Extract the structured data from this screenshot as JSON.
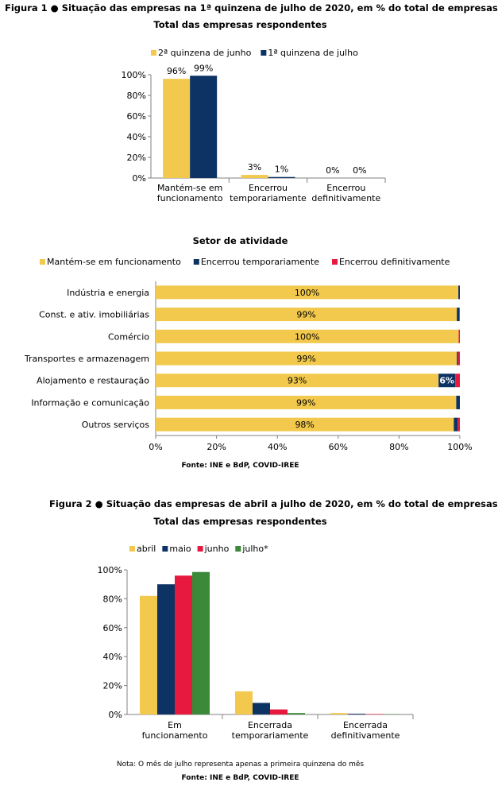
{
  "colors": {
    "yellow": "#F2C94C",
    "navy": "#0D3264",
    "red": "#E8193F",
    "green": "#3A8A3A",
    "axis": "#808080"
  },
  "figure1": {
    "title": "Figura 1 ● Situação das empresas na 1ª quinzena de julho de 2020, em % do total de empresas",
    "subtitle": "Total das empresas respondentes"
  },
  "sector": {
    "subtitle": "Setor de atividade"
  },
  "source": "Fonte: INE e BdP, COVID-IREE",
  "figure2": {
    "title": "Figura 2 ● Situação das empresas de abril a julho de 2020, em % do total de empresas",
    "subtitle": "Total das empresas respondentes",
    "note": "Nota: O mês de julho representa apenas a primeira quinzena do mês",
    "source": "Fonte: INE e BdP, COVID-IREE"
  },
  "chart_data": [
    {
      "type": "bar",
      "title": "Total das empresas respondentes",
      "categories": [
        "Mantém-se em funcionamento",
        "Encerrou temporariamente",
        "Encerrou definitivamente"
      ],
      "series": [
        {
          "name": "2ª quinzena de junho",
          "color": "#F2C94C",
          "values": [
            96,
            3,
            0
          ],
          "labels": [
            "96%",
            "3%",
            "0%"
          ]
        },
        {
          "name": "1ª quinzena de julho",
          "color": "#0D3264",
          "values": [
            99,
            1,
            0
          ],
          "labels": [
            "99%",
            "1%",
            "0%"
          ]
        }
      ],
      "ylim": [
        0,
        100
      ],
      "yticks": [
        "0%",
        "20%",
        "40%",
        "60%",
        "80%",
        "100%"
      ],
      "legend": "top"
    },
    {
      "type": "bar",
      "orientation": "horizontal",
      "stacked": true,
      "title": "Setor de atividade",
      "categories": [
        "Indústria e energia",
        "Const. e ativ. imobiliárias",
        "Comércio",
        "Transportes e armazenagem",
        "Alojamento e restauração",
        "Informação e comunicação",
        "Outros serviços"
      ],
      "series": [
        {
          "name": "Mantém-se em funcionamento",
          "color": "#F2C94C",
          "values": [
            99.5,
            99,
            99.6,
            99,
            93,
            98.8,
            98
          ],
          "labels": [
            "100%",
            "99%",
            "100%",
            "99%",
            "93%",
            "99%",
            "98%"
          ]
        },
        {
          "name": "Encerrou temporariamente",
          "color": "#0D3264",
          "values": [
            0.5,
            0.8,
            0,
            0.4,
            5.5,
            1.2,
            1.3
          ],
          "labels": [
            "",
            "",
            "",
            "",
            "6%",
            "",
            ""
          ]
        },
        {
          "name": "Encerrou definitivamente",
          "color": "#E8193F",
          "values": [
            0,
            0.2,
            0.4,
            0.6,
            1.5,
            0,
            0.7
          ],
          "labels": [
            "",
            "",
            "",
            "",
            "",
            "",
            ""
          ]
        }
      ],
      "xlim": [
        0,
        100
      ],
      "xticks": [
        "0%",
        "20%",
        "40%",
        "60%",
        "80%",
        "100%"
      ],
      "legend": "top"
    },
    {
      "type": "bar",
      "title": "Total das empresas respondentes",
      "categories": [
        "Em funcionamento",
        "Encerrada temporariamente",
        "Encerrada definitivamente"
      ],
      "series": [
        {
          "name": "abril",
          "color": "#F2C94C",
          "values": [
            82,
            16,
            1
          ]
        },
        {
          "name": "maio",
          "color": "#0D3264",
          "values": [
            90,
            8,
            0.5
          ]
        },
        {
          "name": "junho",
          "color": "#E8193F",
          "values": [
            96,
            3.5,
            0.3
          ]
        },
        {
          "name": "julho*",
          "color": "#3A8A3A",
          "values": [
            98.5,
            1,
            0.2
          ]
        }
      ],
      "ylim": [
        0,
        100
      ],
      "yticks": [
        "0%",
        "20%",
        "40%",
        "60%",
        "80%",
        "100%"
      ],
      "legend": "top"
    }
  ]
}
